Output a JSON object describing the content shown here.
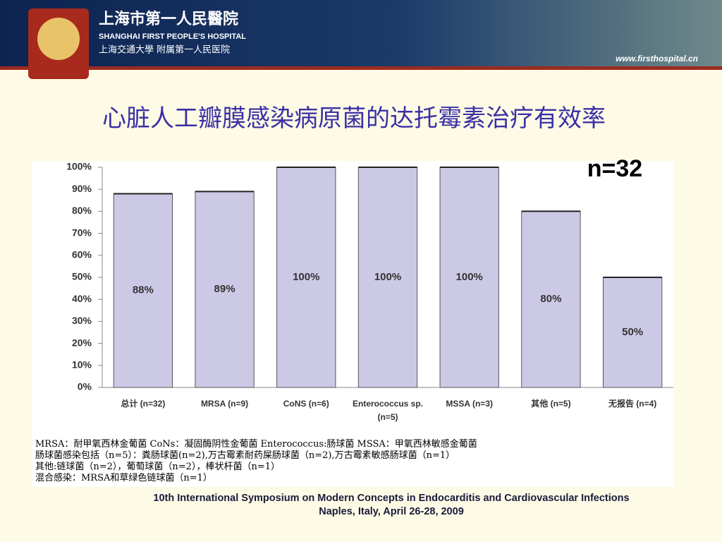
{
  "header": {
    "hospital_cn": "上海市第一人民醫院",
    "hospital_en": "SHANGHAI FIRST PEOPLE'S HOSPITAL",
    "university": "上海交通大學 附属第一人民医院",
    "website": "www.firsthospital.cn"
  },
  "chart_data": {
    "type": "bar",
    "title": "心脏人工瓣膜感染病原菌的达托霉素治疗有效率",
    "annotation": "n=32",
    "categories": [
      "总计 (n=32)",
      "MRSA (n=9)",
      "CoNS (n=6)",
      "Enterococcus sp. (n=5)",
      "MSSA (n=3)",
      "其他 (n=5)",
      "无报告 (n=4)"
    ],
    "values": [
      88,
      89,
      100,
      100,
      100,
      80,
      50
    ],
    "value_labels": [
      "88%",
      "89%",
      "100%",
      "100%",
      "100%",
      "80%",
      "50%"
    ],
    "color": "#ccc9e6",
    "ylim": [
      0,
      100
    ],
    "yticks": [
      {
        "value": 0,
        "label": "0%"
      },
      {
        "value": 10,
        "label": "10%"
      },
      {
        "value": 20,
        "label": "20%"
      },
      {
        "value": 30,
        "label": "30%"
      },
      {
        "value": 40,
        "label": "40%"
      },
      {
        "value": 50,
        "label": "50%"
      },
      {
        "value": 60,
        "label": "60%"
      },
      {
        "value": 70,
        "label": "70%"
      },
      {
        "value": 80,
        "label": "80%"
      },
      {
        "value": 90,
        "label": "90%"
      },
      {
        "value": 100,
        "label": "100%"
      }
    ],
    "grid": false
  },
  "notes": [
    "MRSA：耐甲氧西林金葡菌 CoNs：凝固酶阴性金葡菌  Enterococcus:肠球菌 MSSA：甲氧西林敏感金葡菌",
    "肠球菌感染包括（n=5）：粪肠球菌(n=2),万古霉素耐药屎肠球菌（n=2),万古霉素敏感肠球菌（n=1）",
    "其他:链球菌（n=2），葡萄球菌（n=2），棒状杆菌（n=1）",
    "混合感染：MRSA和草绿色链球菌（n=1）"
  ],
  "footer": [
    "10th International Symposium on Modern Concepts in Endocarditis and Cardiovascular Infections",
    "Naples, Italy, April 26-28, 2009"
  ]
}
